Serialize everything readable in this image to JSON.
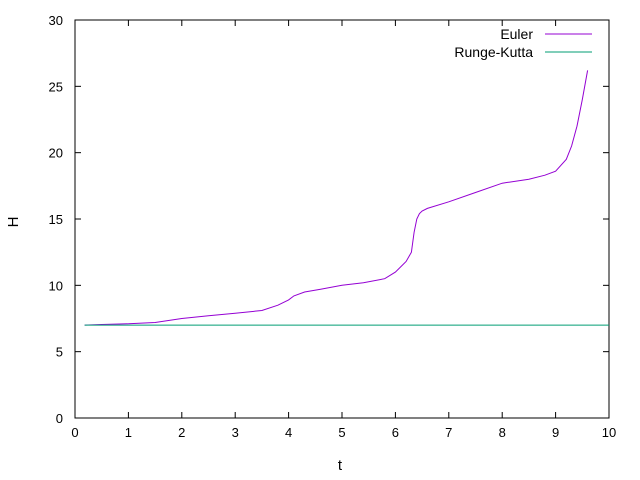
{
  "chart_data": {
    "type": "line",
    "xlabel": "t",
    "ylabel": "H",
    "xlim": [
      0,
      10
    ],
    "ylim": [
      0,
      30
    ],
    "xticks": [
      "0",
      "1",
      "2",
      "3",
      "4",
      "5",
      "6",
      "7",
      "8",
      "9",
      "10"
    ],
    "yticks": [
      "0",
      "5",
      "10",
      "15",
      "20",
      "25",
      "30"
    ],
    "grid": false,
    "legend_position": "top-right",
    "series": [
      {
        "name": "Euler",
        "color": "#9400d3",
        "x": [
          0.18,
          0.5,
          1.0,
          1.5,
          2.0,
          2.5,
          3.0,
          3.5,
          3.8,
          4.0,
          4.1,
          4.3,
          4.6,
          5.0,
          5.4,
          5.8,
          6.0,
          6.2,
          6.3,
          6.35,
          6.4,
          6.45,
          6.5,
          6.6,
          7.0,
          7.5,
          8.0,
          8.5,
          8.8,
          9.0,
          9.2,
          9.3,
          9.4,
          9.5,
          9.6
        ],
        "y": [
          7.0,
          7.05,
          7.1,
          7.2,
          7.5,
          7.7,
          7.9,
          8.1,
          8.5,
          8.9,
          9.2,
          9.5,
          9.7,
          10.0,
          10.2,
          10.5,
          11.0,
          11.8,
          12.5,
          14.0,
          15.0,
          15.4,
          15.6,
          15.8,
          16.3,
          17.0,
          17.7,
          18.0,
          18.3,
          18.6,
          19.5,
          20.5,
          22.0,
          24.0,
          26.2
        ]
      },
      {
        "name": "Runge-Kutta",
        "color": "#009e73",
        "x": [
          0.18,
          10.0
        ],
        "y": [
          7.0,
          7.0
        ]
      }
    ]
  }
}
